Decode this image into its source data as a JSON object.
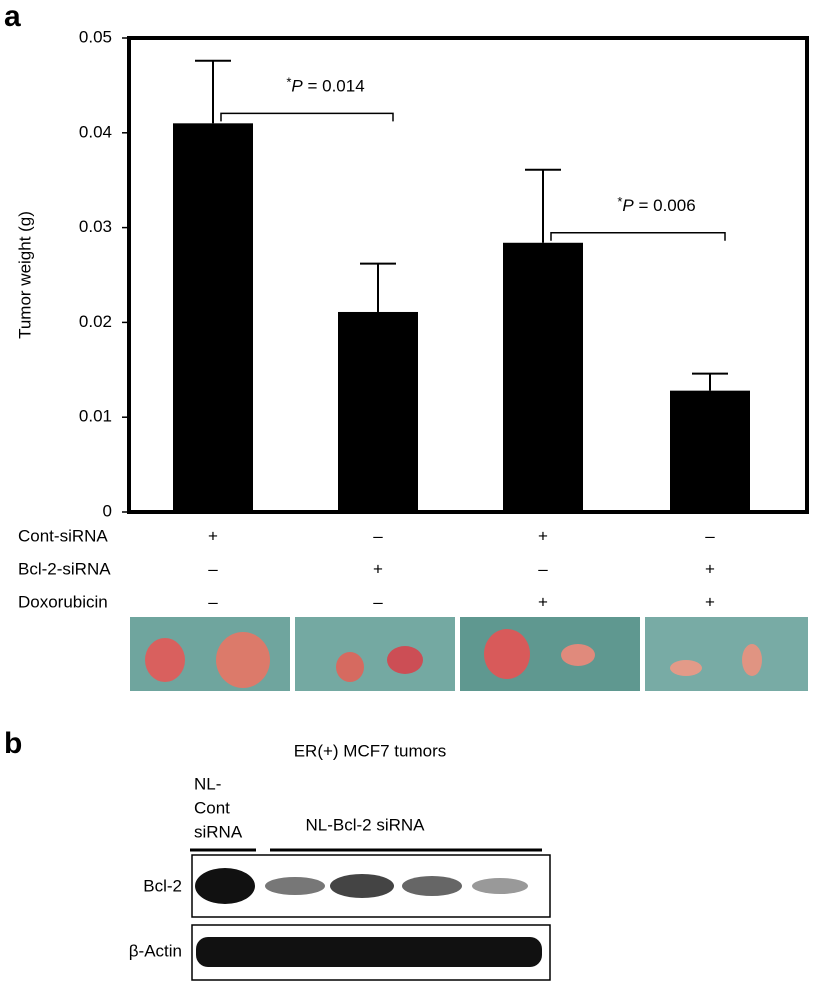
{
  "panel_a": "a",
  "chart_data": {
    "type": "bar",
    "ylabel": "Tumor weight (g)",
    "categories": [
      null,
      null,
      null,
      null
    ],
    "values": [
      0.041,
      0.0211,
      0.0284,
      0.0128
    ],
    "errors": [
      0.0066,
      0.0051,
      0.0077,
      0.0018
    ],
    "color": "#000000",
    "ylim": [
      0,
      0.05
    ],
    "yticks": [
      0,
      0.01,
      0.02,
      0.03,
      0.04,
      0.05
    ],
    "grid": false,
    "annotations": [
      {
        "star": "*",
        "symbol": "P",
        "text": " = 0.014"
      },
      {
        "star": "*",
        "symbol": "P",
        "text": " = 0.006"
      }
    ],
    "treatments": [
      {
        "name": "Cont-siRNA",
        "signs": [
          "+",
          "–",
          "+",
          "–"
        ]
      },
      {
        "name": "Bcl-2-siRNA",
        "signs": [
          "–",
          "+",
          "–",
          "+"
        ]
      },
      {
        "name": "Doxorubicin",
        "signs": [
          "–",
          "–",
          "+",
          "+"
        ]
      }
    ]
  },
  "panel_b": "b",
  "blot": {
    "title": "ER(+) MCF7 tumors",
    "groups": [
      [
        "NL-",
        "Cont",
        "siRNA"
      ],
      [
        "NL-Bcl-2 siRNA"
      ]
    ],
    "rows": [
      "Bcl-2",
      "β-Actin"
    ]
  }
}
